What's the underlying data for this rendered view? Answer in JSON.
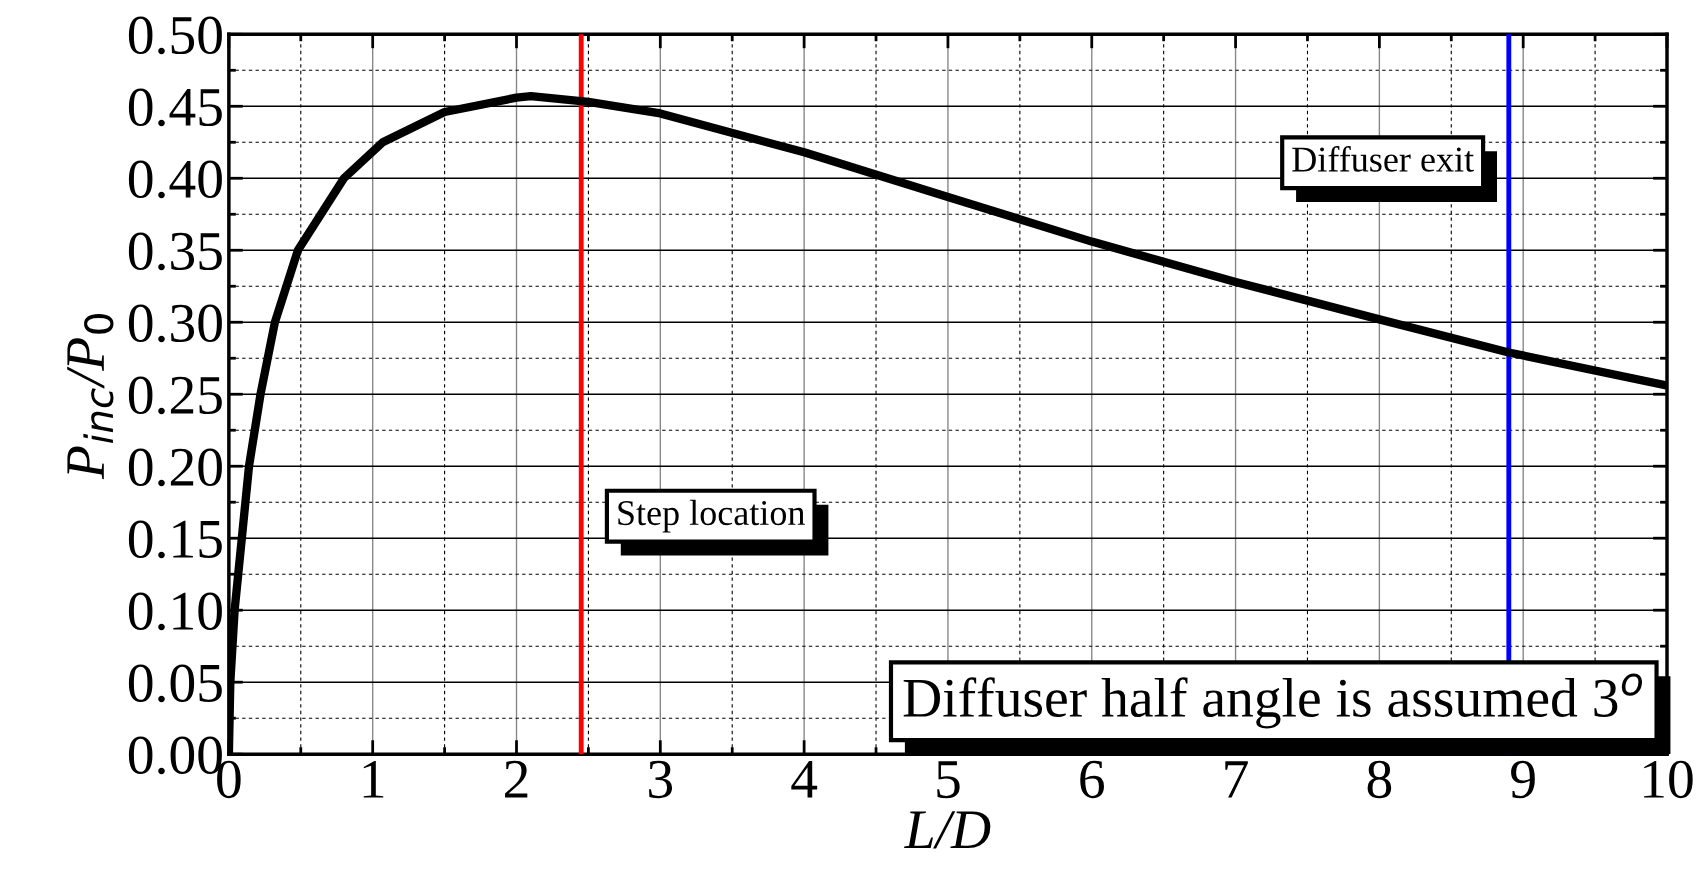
{
  "chart_data": {
    "type": "line",
    "xlabel": "L/D",
    "ylabel": "P$_{inc}$/P$_{0}$",
    "x": [
      0,
      0.01,
      0.04,
      0.09,
      0.14,
      0.22,
      0.32,
      0.48,
      0.8,
      1.07,
      1.5,
      2.0,
      2.1,
      2.5,
      3.0,
      4.0,
      5.0,
      6.0,
      7.0,
      8.0,
      8.9,
      10.0
    ],
    "series": [
      {
        "color": "#000000",
        "values": [
          0,
          0.05,
          0.1,
          0.15,
          0.2,
          0.25,
          0.3,
          0.35,
          0.4,
          0.425,
          0.446,
          0.456,
          0.457,
          0.453,
          0.445,
          0.418,
          0.387,
          0.356,
          0.328,
          0.302,
          0.279,
          0.256
        ]
      }
    ],
    "xlim": [
      0,
      10
    ],
    "ylim": [
      0,
      0.5
    ],
    "xticks": [
      {
        "value": 0,
        "label": "0"
      },
      {
        "value": 0.5,
        "label": null
      },
      {
        "value": 1,
        "label": "1"
      },
      {
        "value": 1.5,
        "label": null
      },
      {
        "value": 2,
        "label": "2"
      },
      {
        "value": 2.5,
        "label": null
      },
      {
        "value": 3,
        "label": "3"
      },
      {
        "value": 3.5,
        "label": null
      },
      {
        "value": 4,
        "label": "4"
      },
      {
        "value": 4.5,
        "label": null
      },
      {
        "value": 5,
        "label": "5"
      },
      {
        "value": 5.5,
        "label": null
      },
      {
        "value": 6,
        "label": "6"
      },
      {
        "value": 6.5,
        "label": null
      },
      {
        "value": 7,
        "label": "7"
      },
      {
        "value": 7.5,
        "label": null
      },
      {
        "value": 8,
        "label": "8"
      },
      {
        "value": 8.5,
        "label": null
      },
      {
        "value": 9,
        "label": "9"
      },
      {
        "value": 9.5,
        "label": null
      },
      {
        "value": 10,
        "label": "10"
      }
    ],
    "yticks": [
      {
        "value": 0,
        "label": "0.00"
      },
      {
        "value": 0.025,
        "label": null
      },
      {
        "value": 0.05,
        "label": "0.05"
      },
      {
        "value": 0.075,
        "label": null
      },
      {
        "value": 0.1,
        "label": "0.10"
      },
      {
        "value": 0.125,
        "label": null
      },
      {
        "value": 0.15,
        "label": "0.15"
      },
      {
        "value": 0.175,
        "label": null
      },
      {
        "value": 0.2,
        "label": "0.20"
      },
      {
        "value": 0.225,
        "label": null
      },
      {
        "value": 0.25,
        "label": "0.25"
      },
      {
        "value": 0.275,
        "label": null
      },
      {
        "value": 0.3,
        "label": "0.30"
      },
      {
        "value": 0.325,
        "label": null
      },
      {
        "value": 0.35,
        "label": "0.35"
      },
      {
        "value": 0.375,
        "label": null
      },
      {
        "value": 0.4,
        "label": "0.40"
      },
      {
        "value": 0.425,
        "label": null
      },
      {
        "value": 0.45,
        "label": "0.45"
      },
      {
        "value": 0.475,
        "label": null
      },
      {
        "value": 0.5,
        "label": "0.50"
      }
    ],
    "grid": true,
    "line_style": "solid",
    "marker": "none",
    "ref_lines": [
      {
        "axis": "x",
        "value": 2.45,
        "label": "Step location",
        "color": "#ff0000"
      },
      {
        "axis": "x",
        "value": 8.9,
        "label": "Diffuser exit",
        "color": "#0000ff"
      }
    ],
    "annotations": [
      "Diffuser half angle is assumed 3$^{o}$"
    ]
  }
}
